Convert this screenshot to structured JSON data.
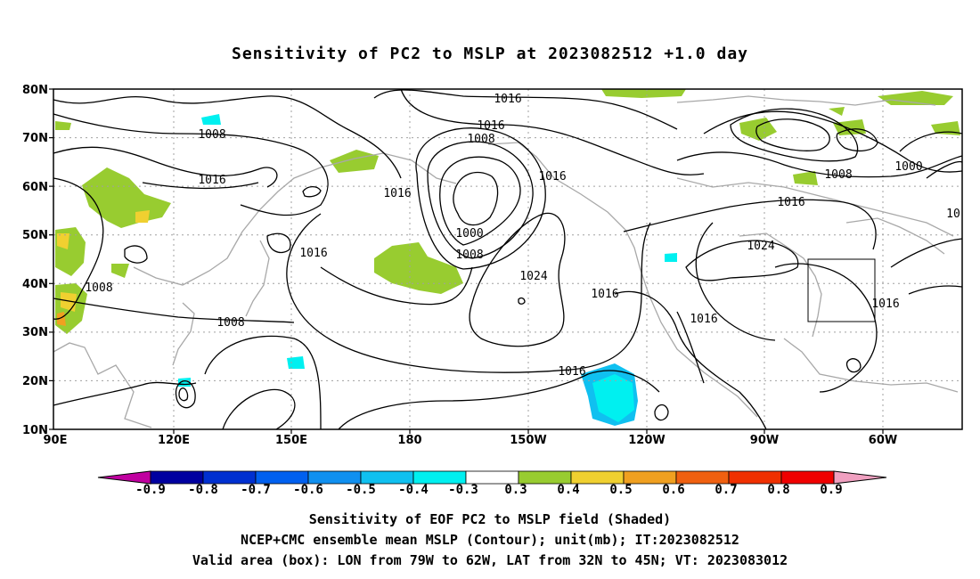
{
  "title": "Sensitivity of PC2 to MSLP at 2023082512 +1.0 day",
  "map": {
    "lat_labels": [
      "80N",
      "70N",
      "60N",
      "50N",
      "40N",
      "30N",
      "20N",
      "10N"
    ],
    "lon_labels": [
      "90E",
      "120E",
      "150E",
      "180",
      "150W",
      "120W",
      "90W",
      "60W"
    ],
    "contour_labels": [
      "1016",
      "1016",
      "1008",
      "1008",
      "1016",
      "1016",
      "1016",
      "1016",
      "1000",
      "1008",
      "1024",
      "1016",
      "1008",
      "1008",
      "1008",
      "1016",
      "1016",
      "1024",
      "1016",
      "1016",
      "1000",
      "1008",
      "1016",
      "10"
    ],
    "valid_box": {
      "lon_min": "79W",
      "lon_max": "62W",
      "lat_min": "32N",
      "lat_max": "45N"
    }
  },
  "colorbar": {
    "labels": [
      "-0.9",
      "-0.8",
      "-0.7",
      "-0.6",
      "-0.5",
      "-0.4",
      "-0.3",
      "0.3",
      "0.4",
      "0.5",
      "0.6",
      "0.7",
      "0.8",
      "0.9"
    ],
    "colors": [
      "#0000a0",
      "#0030d0",
      "#0060f0",
      "#1090f0",
      "#10c0f0",
      "#00f0f0",
      "#ffffff",
      "#98cc30",
      "#f0d030",
      "#f0a020",
      "#f06010",
      "#f03000",
      "#f00000"
    ],
    "under_color": "#c000a0",
    "over_color": "#f0a0c0"
  },
  "captions": [
    "Sensitivity of EOF PC2 to MSLP field (Shaded)",
    "NCEP+CMC ensemble mean MSLP (Contour); unit(mb); IT:2023082512",
    "Valid area (box): LON from 79W to 62W, LAT from 32N to 45N; VT: 2023083012"
  ]
}
